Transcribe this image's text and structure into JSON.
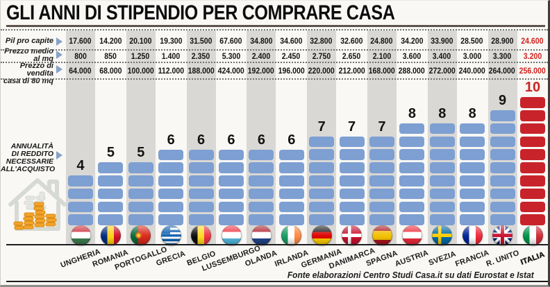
{
  "title": "GLI ANNI DI STIPENDIO PER COMPRARE CASA",
  "row_labels": [
    {
      "id": "pil",
      "line1": "Pil pro capite",
      "line2": ""
    },
    {
      "id": "mq",
      "line1": "Prezzo medio",
      "line2": "al mq"
    },
    {
      "id": "casa",
      "line1": "Prezzo di vendita",
      "line2": "casa di 80 mq"
    }
  ],
  "annuity_label": {
    "l1": "ANNUALITÀ",
    "l2": "DI REDDITO",
    "l3": "NECESSARIE",
    "l4": "ALL'ACQUISTO"
  },
  "footer": "Fonte elaborazioni Centro Studi Casa.it su dati Eurostat e Istat",
  "colors": {
    "bar_blue": "#7d9fd2",
    "highlight_red": "#c8232a",
    "band_gray": "#d9d8d5"
  },
  "countries": [
    {
      "name": "UNGHERIA",
      "flag": "hungary",
      "pil": "17.600",
      "prezzo_mq": "800",
      "prezzo_casa": "64.000",
      "anni": 4,
      "band": true,
      "highlight": false
    },
    {
      "name": "ROMANIA",
      "flag": "romania",
      "pil": "14.200",
      "prezzo_mq": "850",
      "prezzo_casa": "68.000",
      "anni": 5,
      "band": false,
      "highlight": false
    },
    {
      "name": "PORTOGALLO",
      "flag": "portugal",
      "pil": "20.100",
      "prezzo_mq": "1.250",
      "prezzo_casa": "100.000",
      "anni": 5,
      "band": true,
      "highlight": false
    },
    {
      "name": "GRECIA",
      "flag": "greece",
      "pil": "19.300",
      "prezzo_mq": "1.400",
      "prezzo_casa": "112.000",
      "anni": 6,
      "band": false,
      "highlight": false
    },
    {
      "name": "BELGIO",
      "flag": "belgium",
      "pil": "31.500",
      "prezzo_mq": "2.350",
      "prezzo_casa": "188.000",
      "anni": 6,
      "band": true,
      "highlight": false
    },
    {
      "name": "LUSSEMBURGO",
      "flag": "luxembourg",
      "pil": "67.600",
      "prezzo_mq": "5.300",
      "prezzo_casa": "424.000",
      "anni": 6,
      "band": false,
      "highlight": false
    },
    {
      "name": "OLANDA",
      "flag": "netherlands",
      "pil": "34.800",
      "prezzo_mq": "2.400",
      "prezzo_casa": "192.000",
      "anni": 6,
      "band": true,
      "highlight": false
    },
    {
      "name": "IRLANDA",
      "flag": "ireland",
      "pil": "34.600",
      "prezzo_mq": "2.450",
      "prezzo_casa": "196.000",
      "anni": 6,
      "band": false,
      "highlight": false
    },
    {
      "name": "GERMANIA",
      "flag": "germany",
      "pil": "32.800",
      "prezzo_mq": "2.750",
      "prezzo_casa": "220.000",
      "anni": 7,
      "band": true,
      "highlight": false
    },
    {
      "name": "DANIMARCA",
      "flag": "denmark",
      "pil": "32.600",
      "prezzo_mq": "2.650",
      "prezzo_casa": "212.000",
      "anni": 7,
      "band": false,
      "highlight": false
    },
    {
      "name": "SPAGNA",
      "flag": "spain",
      "pil": "24.800",
      "prezzo_mq": "2.100",
      "prezzo_casa": "168.000",
      "anni": 7,
      "band": true,
      "highlight": false
    },
    {
      "name": "AUSTRIA",
      "flag": "austria",
      "pil": "34.200",
      "prezzo_mq": "3.600",
      "prezzo_casa": "288.000",
      "anni": 8,
      "band": false,
      "highlight": false
    },
    {
      "name": "SVEZIA",
      "flag": "sweden",
      "pil": "33.900",
      "prezzo_mq": "3.400",
      "prezzo_casa": "272.000",
      "anni": 8,
      "band": true,
      "highlight": false
    },
    {
      "name": "FRANCIA",
      "flag": "france",
      "pil": "28.500",
      "prezzo_mq": "3.000",
      "prezzo_casa": "240.000",
      "anni": 8,
      "band": false,
      "highlight": false
    },
    {
      "name": "R. UNITO",
      "flag": "uk",
      "pil": "28.900",
      "prezzo_mq": "3.300",
      "prezzo_casa": "264.000",
      "anni": 9,
      "band": true,
      "highlight": false
    },
    {
      "name": "ITALIA",
      "flag": "italy",
      "pil": "24.600",
      "prezzo_mq": "3.200",
      "prezzo_casa": "256.000",
      "anni": 10,
      "band": false,
      "highlight": true
    }
  ],
  "chart_data": {
    "type": "bar",
    "title": "GLI ANNI DI STIPENDIO PER COMPRARE CASA",
    "categories": [
      "UNGHERIA",
      "ROMANIA",
      "PORTOGALLO",
      "GRECIA",
      "BELGIO",
      "LUSSEMBURGO",
      "OLANDA",
      "IRLANDA",
      "GERMANIA",
      "DANIMARCA",
      "SPAGNA",
      "AUSTRIA",
      "SVEZIA",
      "FRANCIA",
      "R. UNITO",
      "ITALIA"
    ],
    "series": [
      {
        "name": "Pil pro capite",
        "values": [
          17600,
          14200,
          20100,
          19300,
          31500,
          67600,
          34800,
          34600,
          32800,
          32600,
          24800,
          34200,
          33900,
          28500,
          28900,
          24600
        ]
      },
      {
        "name": "Prezzo medio al mq",
        "values": [
          800,
          850,
          1250,
          1400,
          2350,
          5300,
          2400,
          2450,
          2750,
          2650,
          2100,
          3600,
          3400,
          3000,
          3300,
          3200
        ]
      },
      {
        "name": "Prezzo di vendita casa di 80 mq",
        "values": [
          64000,
          68000,
          100000,
          112000,
          188000,
          424000,
          192000,
          196000,
          220000,
          212000,
          168000,
          288000,
          272000,
          240000,
          264000,
          256000
        ]
      },
      {
        "name": "Annualità di reddito necessarie all'acquisto",
        "values": [
          4,
          5,
          5,
          6,
          6,
          6,
          6,
          6,
          7,
          7,
          7,
          8,
          8,
          8,
          9,
          10
        ]
      }
    ],
    "highlight_category": "ITALIA",
    "ylim": [
      0,
      10
    ],
    "grid": false,
    "legend": "none",
    "bar_color": "#7d9fd2",
    "highlight_color": "#c8232a",
    "source": "Fonte elaborazioni Centro Studi Casa.it su dati Eurostat e Istat"
  }
}
